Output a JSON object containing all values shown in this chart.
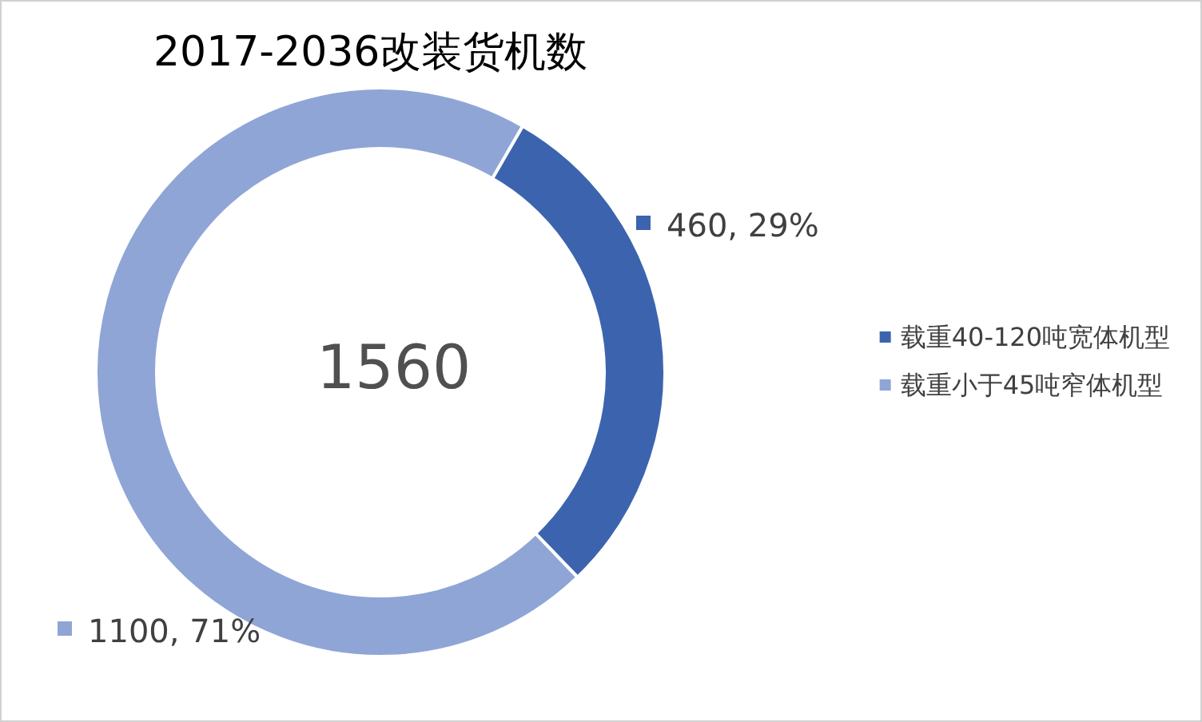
{
  "chart_data": {
    "type": "donut",
    "title": "2017-2036改装货机数",
    "categories": [
      "载重40-120吨宽体机型",
      "载重小于45吨窄体机型"
    ],
    "values": [
      460,
      1100
    ],
    "colors": [
      "#3c64ae",
      "#8fa5d6"
    ],
    "value_labels": [
      "460, 29%",
      "1100, 71%"
    ],
    "annotations": [
      "1560"
    ],
    "legend": "right"
  }
}
